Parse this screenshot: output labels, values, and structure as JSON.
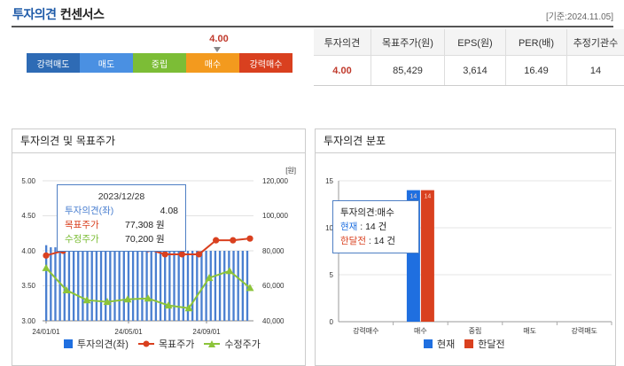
{
  "header": {
    "title_main": "투자의견",
    "title_sub": "컨센서스",
    "date_note": "[기준:2024.11.05]"
  },
  "opinion_scale": {
    "segments": [
      {
        "label": "강력매도",
        "color": "#2e6bb5"
      },
      {
        "label": "매도",
        "color": "#4a90e2"
      },
      {
        "label": "중립",
        "color": "#7cbd36"
      },
      {
        "label": "매수",
        "color": "#f39a1e"
      },
      {
        "label": "강력매수",
        "color": "#d9401f"
      }
    ],
    "current_value": "4.00"
  },
  "consensus_table": {
    "headers": [
      "투자의견",
      "목표주가(원)",
      "EPS(원)",
      "PER(배)",
      "추정기관수"
    ],
    "row": [
      "4.00",
      "85,429",
      "3,614",
      "16.49",
      "14"
    ]
  },
  "left_panel": {
    "title": "투자의견 및 목표주가",
    "unit_label": "[원]",
    "tooltip": {
      "date": "2023/12/28",
      "lines": [
        {
          "label": "투자의견(좌)",
          "value": "4.08",
          "color": "#4a7fd0"
        },
        {
          "label": "목표주가",
          "value": "77,308 원",
          "color": "#d9401f"
        },
        {
          "label": "수정주가",
          "value": "70,200 원",
          "color": "#7cbd36"
        }
      ]
    },
    "legend": [
      "투자의견(좌)",
      "목표주가",
      "수정주가"
    ]
  },
  "right_panel": {
    "title": "투자의견 분포",
    "tooltip": {
      "title": "투자의견:매수",
      "lines": [
        {
          "label": "현재",
          "value": ": 14 건",
          "color": "#1f6fe0"
        },
        {
          "label": "한달전",
          "value": ": 14 건",
          "color": "#d9401f"
        }
      ]
    },
    "legend": [
      "현재",
      "한달전"
    ]
  },
  "chart_data": [
    {
      "type": "line",
      "title": "투자의견 및 목표주가",
      "x_ticks": [
        "24/01/01",
        "24/05/01",
        "24/09/01"
      ],
      "y_left": {
        "ticks": [
          "3.00",
          "3.50",
          "4.00",
          "4.50",
          "5.00"
        ],
        "ylim": [
          3.0,
          5.0
        ]
      },
      "y_right": {
        "ticks": [
          "40,000",
          "60,000",
          "80,000",
          "100,000",
          "120,000"
        ],
        "ylim": [
          40000,
          120000
        ],
        "unit": "[원]"
      },
      "series": [
        {
          "name": "투자의견(좌)",
          "axis": "left",
          "style": "bar",
          "color": "#4a7fd0",
          "values": [
            4.08,
            4.05,
            4.05,
            4.05,
            4.05,
            4.0,
            4.0,
            4.0,
            4.0,
            4.0,
            4.0,
            4.0,
            4.0,
            4.0,
            4.0,
            4.0,
            4.0,
            4.0,
            4.0,
            4.0,
            4.0,
            4.0,
            4.0,
            4.0,
            4.0,
            4.0,
            4.0,
            4.0,
            4.0,
            4.0,
            4.0,
            4.0,
            4.0,
            4.0,
            4.0,
            4.0,
            4.0,
            4.0,
            4.0,
            4.0,
            4.0,
            4.0,
            4.0,
            4.0,
            4.0
          ]
        },
        {
          "name": "목표주가",
          "axis": "right",
          "style": "line",
          "color": "#d9401f",
          "values": [
            77308,
            80000,
            82000,
            82000,
            83000,
            82000,
            81000,
            78000,
            78000,
            78000,
            86000,
            86000,
            87000
          ]
        },
        {
          "name": "수정주가",
          "axis": "right",
          "style": "line",
          "color": "#8cc43a",
          "values": [
            70200,
            57500,
            51800,
            50800,
            52300,
            52800,
            48800,
            47200,
            64500,
            68500,
            58800
          ]
        }
      ]
    },
    {
      "type": "bar",
      "title": "투자의견 분포",
      "categories": [
        "강력매수",
        "매수",
        "중립",
        "매도",
        "강력매도"
      ],
      "ylim": [
        0,
        15
      ],
      "y_ticks": [
        "0",
        "5",
        "10",
        "15"
      ],
      "series": [
        {
          "name": "현재",
          "color": "#1f6fe0",
          "values": [
            0,
            14,
            0,
            0,
            0
          ]
        },
        {
          "name": "한달전",
          "color": "#d9401f",
          "values": [
            0,
            14,
            0,
            0,
            0
          ]
        }
      ]
    }
  ]
}
